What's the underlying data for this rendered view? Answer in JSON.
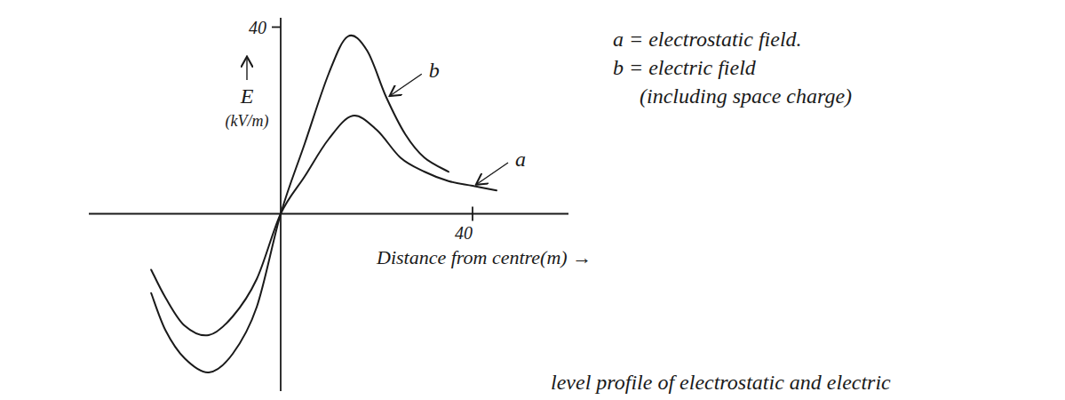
{
  "chart_data": {
    "type": "line",
    "y_label": "E",
    "y_unit": "(kV/m)",
    "x_label": "Distance from centre(m) →",
    "xlim": [
      -40,
      60
    ],
    "ylim": [
      -38,
      42
    ],
    "xticks": [
      40
    ],
    "yticks": [
      40
    ],
    "grid": false,
    "series": [
      {
        "name": "a",
        "color": "#1a1a1a",
        "x": [
          -27,
          -24,
          -20,
          -15,
          -10,
          -5,
          0,
          5,
          10,
          15,
          20,
          25,
          30,
          35,
          40,
          45
        ],
        "values": [
          -12,
          -18,
          -24,
          -26,
          -22,
          -14,
          0,
          8,
          16,
          21,
          18,
          12,
          9,
          7,
          6,
          5
        ]
      },
      {
        "name": "b",
        "color": "#1a1a1a",
        "x": [
          -27,
          -24,
          -20,
          -15,
          -10,
          -5,
          0,
          5,
          10,
          14,
          18,
          22,
          26,
          30,
          35
        ],
        "values": [
          -17,
          -25,
          -31,
          -34,
          -30,
          -20,
          0,
          15,
          30,
          38,
          35,
          25,
          17,
          12,
          9
        ]
      }
    ],
    "annotations": [
      "a = electrostatic field.",
      "b = electric field",
      "(including space charge)"
    ],
    "caption": "level profile of electrostatic and electric"
  }
}
